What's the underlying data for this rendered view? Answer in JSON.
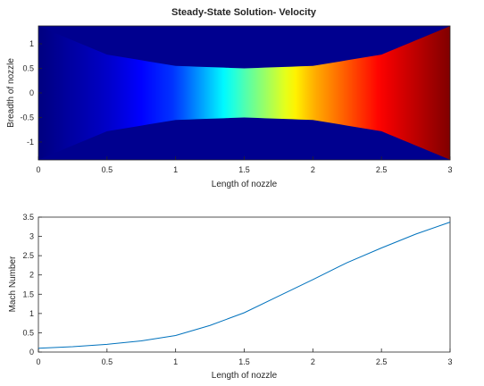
{
  "figure": {
    "title": "Steady-State Solution- Velocity"
  },
  "chart_data": [
    {
      "type": "heatmap",
      "title": "Steady-State Solution- Velocity",
      "xlabel": "Length of nozzle",
      "ylabel": "Breadth of nozzle",
      "xlim": [
        0,
        3
      ],
      "ylim": [
        -1.364,
        1.364
      ],
      "xticks": [
        "0",
        "0.5",
        "1",
        "1.5",
        "2",
        "2.5",
        "3"
      ],
      "yticks": [
        "-1",
        "-0.5",
        "0",
        "0.5",
        "1"
      ],
      "background_color": "#00008f",
      "colormap": "jet",
      "nozzle_profile": {
        "description_of_shape": "area = 1 + 2.2*(x - 1.5)^2, half-breadth = area/2",
        "x": [
          0,
          0.5,
          1,
          1.5,
          2,
          2.5,
          3
        ],
        "half_breadth": [
          1.36,
          0.78,
          0.55,
          0.5,
          0.55,
          0.78,
          1.36
        ]
      },
      "color_field": {
        "x": [
          0,
          0.5,
          1,
          1.5,
          2,
          2.5,
          3
        ],
        "velocity_normalized": [
          0.0,
          0.07,
          0.18,
          0.45,
          0.7,
          0.88,
          1.0
        ]
      },
      "grid": false
    },
    {
      "type": "line",
      "xlabel": "Length of nozzle",
      "ylabel": "Mach Number",
      "xlim": [
        0,
        3
      ],
      "ylim": [
        0,
        3.5
      ],
      "xticks": [
        "0",
        "0.5",
        "1",
        "1.5",
        "2",
        "2.5",
        "3"
      ],
      "yticks": [
        "0",
        "0.5",
        "1",
        "1.5",
        "2",
        "2.5",
        "3",
        "3.5"
      ],
      "grid": false,
      "series": [
        {
          "color": "#0072bd",
          "x": [
            0,
            0.25,
            0.5,
            0.75,
            1.0,
            1.25,
            1.5,
            1.75,
            2.0,
            2.25,
            2.5,
            2.75,
            3.0
          ],
          "y": [
            0.1,
            0.14,
            0.2,
            0.29,
            0.43,
            0.69,
            1.02,
            1.45,
            1.88,
            2.32,
            2.7,
            3.06,
            3.37
          ]
        }
      ]
    }
  ]
}
